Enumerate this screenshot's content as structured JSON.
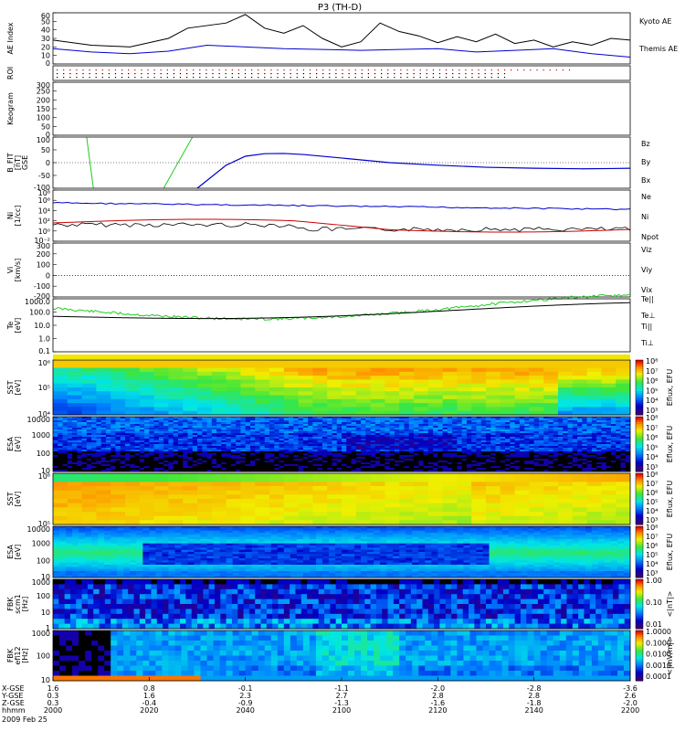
{
  "title": "P3 (TH-D)",
  "date": "2009 Feb 25",
  "colors": {
    "kyoto": "#000000",
    "themis": "#0000cc",
    "bz": "#cc0000",
    "by": "#22cc22",
    "bx": "#0000cc",
    "ne": "#cc0000",
    "ni": "#0000cc",
    "npot": "#000000",
    "tepar": "#000000",
    "teperp": "#cc0000",
    "ti": "#22cc22",
    "tiperp": "#0000cc"
  },
  "chart_data": [
    {
      "type": "line",
      "name": "ae",
      "ylabel": "AE Index",
      "yticks": [
        "0",
        "10",
        "20",
        "30",
        "40",
        "50",
        "60"
      ],
      "ylim": [
        0,
        60
      ],
      "series": [
        {
          "name": "Kyoto AE",
          "x": [
            0,
            4,
            8,
            12,
            14,
            18,
            20,
            22,
            24,
            26,
            28,
            30,
            32,
            34,
            36,
            38,
            40,
            42,
            44,
            46,
            48,
            50,
            52,
            54,
            56,
            58,
            60
          ],
          "values": [
            28,
            22,
            20,
            30,
            42,
            48,
            58,
            42,
            36,
            45,
            30,
            20,
            26,
            48,
            38,
            33,
            25,
            32,
            26,
            35,
            24,
            28,
            20,
            26,
            22,
            30,
            28
          ]
        },
        {
          "name": "Themis AE",
          "x": [
            0,
            4,
            8,
            12,
            16,
            20,
            24,
            28,
            32,
            36,
            40,
            44,
            48,
            52,
            56,
            60
          ],
          "values": [
            18,
            14,
            12,
            15,
            22,
            20,
            18,
            17,
            16,
            17,
            18,
            14,
            16,
            18,
            12,
            8
          ]
        }
      ]
    },
    {
      "type": "scatter",
      "name": "roi",
      "ylabel": "ROI",
      "yticks": [],
      "rows": 3
    },
    {
      "type": "line",
      "name": "keogram",
      "ylabel": "Keogram",
      "yticks": [
        "0",
        "50",
        "100",
        "150",
        "200",
        "250",
        "300"
      ],
      "ylim": [
        0,
        300
      ],
      "series": []
    },
    {
      "type": "line",
      "name": "bfit",
      "ylabel": "B_FIT\n[nT]\nGSE",
      "yticks": [
        "-100",
        "-50",
        "0",
        "50",
        "100"
      ],
      "ylim": [
        -100,
        100
      ],
      "series": [
        {
          "name": "Bz",
          "values": []
        },
        {
          "name": "By",
          "segments": [
            [
              [
                3.5,
                100
              ],
              [
                4.2,
                -100
              ]
            ],
            [
              [
                11.5,
                -100
              ],
              [
                14.5,
                100
              ]
            ]
          ]
        },
        {
          "name": "Bx",
          "x": [
            15,
            16,
            18,
            20,
            22,
            24,
            26,
            30,
            35,
            40,
            45,
            50,
            55,
            58,
            60
          ],
          "values": [
            -100,
            -70,
            -10,
            25,
            35,
            36,
            32,
            18,
            0,
            -10,
            -18,
            -22,
            -24,
            -23,
            -22
          ]
        }
      ]
    },
    {
      "type": "line",
      "name": "density",
      "ylabel": "Ni\n[1/cc]",
      "yticks": [
        "10⁻²",
        "10⁰",
        "10²",
        "10⁴",
        "10⁶",
        "10⁸"
      ],
      "series": [
        {
          "name": "Ne",
          "values": []
        },
        {
          "name": "Ni",
          "values": []
        },
        {
          "name": "Npot",
          "values": []
        }
      ]
    },
    {
      "type": "line",
      "name": "velocity",
      "ylabel": "Vi\n[km/s]",
      "yticks": [
        "-200",
        "-100",
        "0",
        "100",
        "200",
        "300"
      ],
      "ylim": [
        -200,
        300
      ],
      "series": [
        {
          "name": "Viz",
          "values": []
        },
        {
          "name": "Viy",
          "values": []
        },
        {
          "name": "Vix",
          "values": []
        }
      ]
    },
    {
      "type": "line",
      "name": "temperature",
      "ylabel": "Te\n[eV]",
      "yticks": [
        "0.1",
        "1.0",
        "10.0",
        "100.0",
        "1000.0"
      ],
      "series": [
        {
          "name": "Te||",
          "values": []
        },
        {
          "name": "Te⊥",
          "values": []
        },
        {
          "name": "Ti||",
          "values": []
        },
        {
          "name": "Ti⊥",
          "values": []
        }
      ]
    },
    {
      "type": "heatmap",
      "name": "sst-e",
      "ylabel": "SST\n[eV]",
      "yticks": [
        "10⁴",
        "10⁵",
        "10⁶"
      ],
      "cbar": "Eflux, EFU",
      "cbticks": [
        "10³",
        "10⁴",
        "10⁵",
        "10⁶",
        "10⁷",
        "10⁸"
      ]
    },
    {
      "type": "heatmap",
      "name": "esa-e",
      "ylabel": "ESA\n[eV]",
      "yticks": [
        "10",
        "100",
        "1000",
        "10000"
      ],
      "cbar": "Eflux, EFU",
      "cbticks": [
        "10³",
        "10⁴",
        "10⁵",
        "10⁶",
        "10⁷",
        "10⁸"
      ]
    },
    {
      "type": "heatmap",
      "name": "sst-i",
      "ylabel": "SST\n[eV]",
      "yticks": [
        "10⁵",
        "10⁶"
      ],
      "cbar": "Eflux, EFU",
      "cbticks": [
        "10³",
        "10⁴",
        "10⁵",
        "10⁶",
        "10⁷",
        "10⁸"
      ]
    },
    {
      "type": "heatmap",
      "name": "esa-i",
      "ylabel": "ESA\n[eV]",
      "yticks": [
        "10",
        "100",
        "1000",
        "10000"
      ],
      "cbar": "Eflux, EFU",
      "cbticks": [
        "10³",
        "10⁴",
        "10⁵",
        "10⁶",
        "10⁷",
        "10⁸"
      ]
    },
    {
      "type": "heatmap",
      "name": "fbk-b",
      "ylabel": "FBK\nscm1\n[Hz]",
      "yticks": [
        "1",
        "10",
        "100",
        "1000"
      ],
      "cbar": "<|nT|>",
      "cbticks": [
        "0.01",
        "0.10",
        "1.00"
      ]
    },
    {
      "type": "heatmap",
      "name": "fbk-e",
      "ylabel": "FBK\nefi12\n[Hz]",
      "yticks": [
        "10",
        "100",
        "1000"
      ],
      "cbar": "<|mV/m|>",
      "cbticks": [
        "0.0001",
        "0.0010",
        "0.0100",
        "0.1000",
        "1.0000"
      ]
    }
  ],
  "x_axis": {
    "row_labels": [
      "X-GSE",
      "Y-GSE",
      "Z-GSE",
      "hhmm"
    ],
    "ticks": [
      {
        "x": "1.6",
        "y": "0.3",
        "z": "0.3",
        "t": "2000"
      },
      {
        "x": "0.8",
        "y": "1.6",
        "z": "-0.4",
        "t": "2020"
      },
      {
        "x": "-0.1",
        "y": "2.3",
        "z": "-0.9",
        "t": "2040"
      },
      {
        "x": "-1.1",
        "y": "2.7",
        "z": "-1.3",
        "t": "2100"
      },
      {
        "x": "-2.0",
        "y": "2.8",
        "z": "-1.6",
        "t": "2120"
      },
      {
        "x": "-2.8",
        "y": "2.8",
        "z": "-1.8",
        "t": "2140"
      },
      {
        "x": "-3.6",
        "y": "2.6",
        "z": "-2.0",
        "t": "2200"
      }
    ]
  }
}
